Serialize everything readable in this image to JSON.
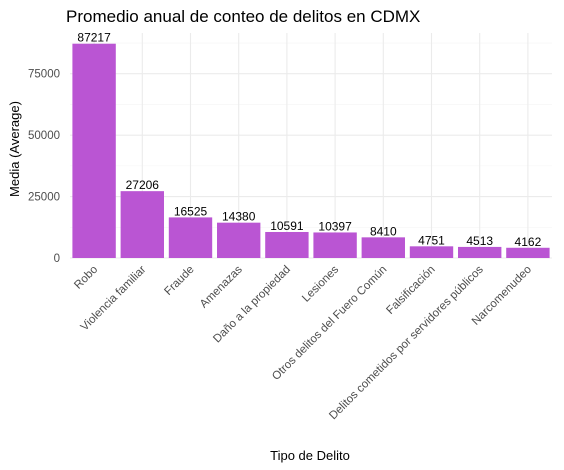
{
  "chart_data": {
    "type": "bar",
    "title": "Promedio anual de conteo de delitos en CDMX",
    "xlabel": "Tipo de Delito",
    "ylabel": "Media (Average)",
    "categories": [
      "Robo",
      "Violencia familiar",
      "Fraude",
      "Amenazas",
      "Daño a la propiedad",
      "Lesiones",
      "Otros delitos del Fuero Común",
      "Falsificación",
      "Delitos cometidos por servidores públicos",
      "Narcomenudeo"
    ],
    "values": [
      87217,
      27206,
      16525,
      14380,
      10591,
      10397,
      8410,
      4751,
      4513,
      4162
    ],
    "data_labels": [
      "87217",
      "27206",
      "16525",
      "14380",
      "10591",
      "10397",
      "8410",
      "4751",
      "4513",
      "4162"
    ],
    "yticks": [
      0,
      25000,
      50000,
      75000
    ],
    "ytick_labels": [
      "0",
      "25000",
      "50000",
      "75000"
    ],
    "ylim": [
      0,
      91578
    ],
    "grid": true,
    "legend": "none",
    "colors": {
      "bar": "#BA55D3",
      "grid_major": "#EBEBEB",
      "grid_minor": "#F5F5F5",
      "background": "#FFFFFF"
    }
  }
}
